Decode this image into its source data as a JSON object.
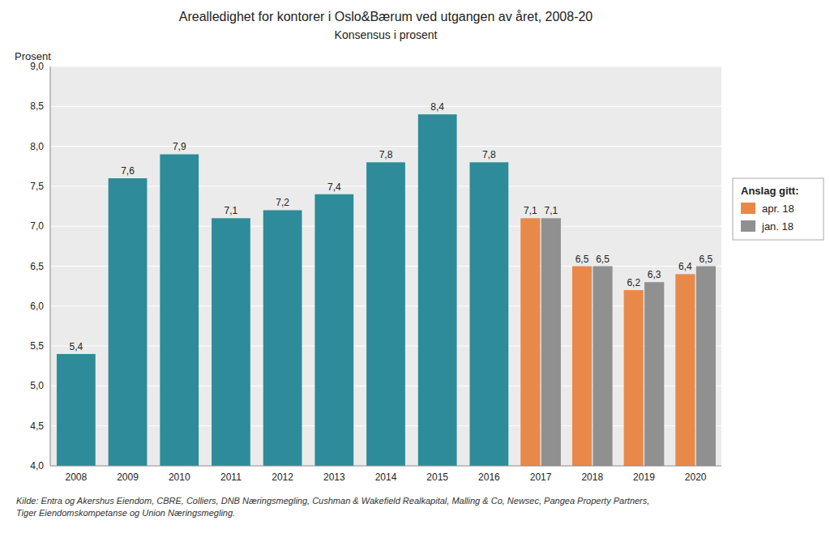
{
  "chart_data": {
    "type": "bar",
    "title": "Arealledighet for kontorer i Oslo&Bærum ved utgangen av året, 2008-20",
    "subtitle": "Konsensus i prosent",
    "y_label": "Prosent",
    "note": "Kilde: Entra og Akershus Eiendom, CBRE, Colliers, DNB Næringsmegling, Cushman & Wakefield Realkapital, Malling & Co, Newsec, Pangea Property Partners,\nTiger Eiendomskompetanse og Union Næringsmegling.",
    "legend_title": "Anslag gitt:",
    "categories": [
      "2008",
      "2009",
      "2010",
      "2011",
      "2012",
      "2013",
      "2014",
      "2015",
      "2016",
      "2017",
      "2018",
      "2019",
      "2020"
    ],
    "series": [
      {
        "color": "#2E8B9A",
        "values": [
          5.4,
          7.6,
          7.9,
          7.1,
          7.2,
          7.4,
          7.8,
          8.4,
          7.8,
          null,
          null,
          null,
          null
        ],
        "value_labels": [
          "5,4",
          "7,6",
          "7,9",
          "7,1",
          "7,2",
          "7,4",
          "7,8",
          "8,4",
          "7,8",
          null,
          null,
          null,
          null
        ]
      },
      {
        "name": "apr. 18",
        "color": "#E8894A",
        "values": [
          null,
          null,
          null,
          null,
          null,
          null,
          null,
          null,
          null,
          7.1,
          6.5,
          6.2,
          6.4
        ],
        "value_labels": [
          null,
          null,
          null,
          null,
          null,
          null,
          null,
          null,
          null,
          "7,1",
          "6,5",
          "6,2",
          "6,4"
        ]
      },
      {
        "name": "jan. 18",
        "color": "#909090",
        "values": [
          null,
          null,
          null,
          null,
          null,
          null,
          null,
          null,
          null,
          7.1,
          6.5,
          6.3,
          6.5
        ],
        "value_labels": [
          null,
          null,
          null,
          null,
          null,
          null,
          null,
          null,
          null,
          "7,1",
          "6,5",
          "6,3",
          "6,5"
        ]
      }
    ],
    "ylim": [
      4.0,
      9.0
    ],
    "yticks": [
      {
        "value": 4.0,
        "label": "4,0"
      },
      {
        "value": 4.5,
        "label": "4,5"
      },
      {
        "value": 5.0,
        "label": "5,0"
      },
      {
        "value": 5.5,
        "label": "5,5"
      },
      {
        "value": 6.0,
        "label": "6,0"
      },
      {
        "value": 6.5,
        "label": "6,5"
      },
      {
        "value": 7.0,
        "label": "7,0"
      },
      {
        "value": 7.5,
        "label": "7,5"
      },
      {
        "value": 8.0,
        "label": "8,0"
      },
      {
        "value": 8.5,
        "label": "8,5"
      },
      {
        "value": 9.0,
        "label": "9,0"
      }
    ],
    "grid": true,
    "data_labels": true,
    "legend": "right"
  }
}
